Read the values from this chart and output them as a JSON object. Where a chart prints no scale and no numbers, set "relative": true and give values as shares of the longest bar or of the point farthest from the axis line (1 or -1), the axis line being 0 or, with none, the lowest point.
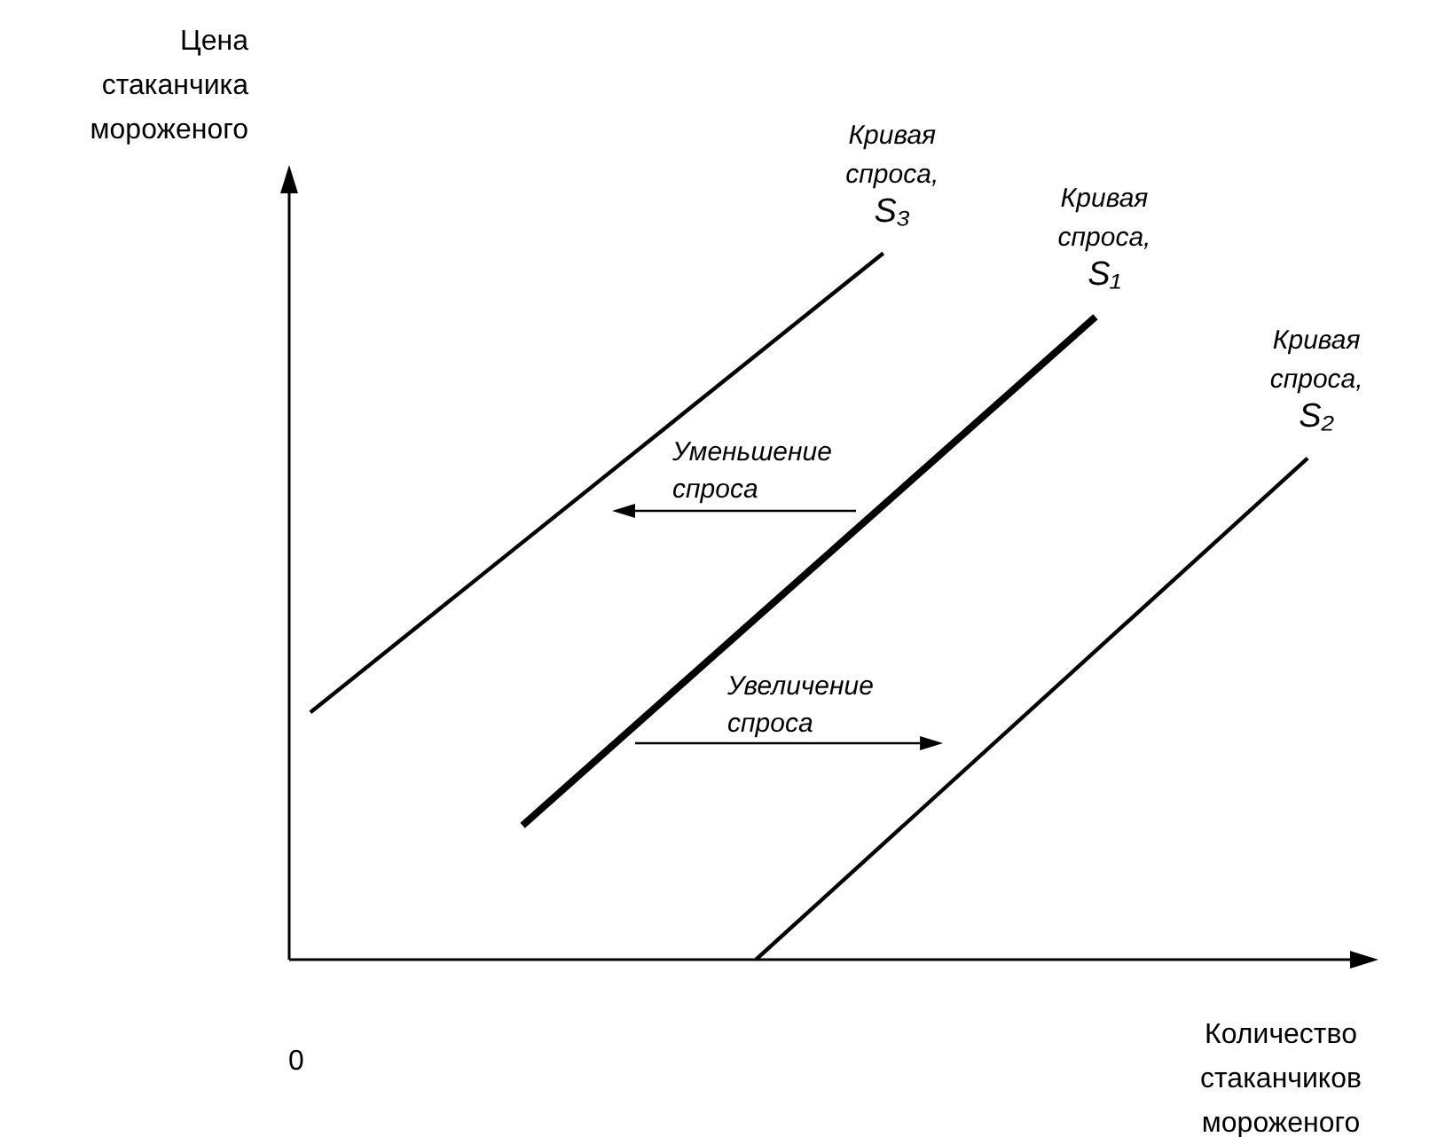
{
  "chart_data": {
    "type": "line",
    "relative": true,
    "legend": false,
    "marker": "none",
    "line_style": "solid",
    "xlabel": "Количество\nстаканчиков\nмороженого",
    "ylabel": "Цена\nстаканчика\nмороженого",
    "categories": [
      null,
      null,
      null,
      null,
      null,
      null,
      null,
      null,
      null,
      null,
      null,
      null,
      null,
      null,
      null,
      null,
      null,
      null,
      null,
      null,
      null,
      null,
      null,
      null,
      null,
      null,
      null,
      null,
      null,
      null,
      null,
      null,
      null,
      null,
      null,
      null,
      null,
      null,
      null,
      null,
      null,
      null,
      null,
      null,
      null,
      null,
      null,
      null,
      null,
      null,
      null
    ],
    "series": [
      {
        "name": "Кривая\nспроса,\nS₁",
        "color": "#000000",
        "values": [
          null,
          null,
          null,
          null,
          null,
          null,
          null,
          null,
          null,
          null,
          null,
          0.19,
          null,
          null,
          null,
          null,
          null,
          null,
          null,
          null,
          null,
          null,
          null,
          null,
          null,
          null,
          null,
          null,
          null,
          null,
          null,
          null,
          null,
          null,
          null,
          null,
          null,
          null,
          0.91,
          null,
          null,
          null,
          null,
          null,
          null,
          null,
          null,
          null,
          null,
          null,
          null
        ]
      },
      {
        "name": "Кривая\nспроса,\nS₂",
        "color": "#000000",
        "values": [
          null,
          null,
          null,
          null,
          null,
          null,
          null,
          null,
          null,
          null,
          null,
          null,
          null,
          null,
          null,
          null,
          null,
          null,
          null,
          null,
          null,
          null,
          0.0,
          null,
          null,
          null,
          null,
          null,
          null,
          null,
          null,
          null,
          null,
          null,
          null,
          null,
          null,
          null,
          null,
          null,
          null,
          null,
          null,
          null,
          null,
          null,
          null,
          null,
          0.71,
          null,
          null
        ]
      },
      {
        "name": "Кривая\nспроса,\nS₃",
        "color": "#000000",
        "values": [
          null,
          0.35,
          null,
          null,
          null,
          null,
          null,
          null,
          null,
          null,
          null,
          null,
          null,
          null,
          null,
          null,
          null,
          null,
          null,
          null,
          null,
          null,
          null,
          null,
          null,
          null,
          null,
          null,
          1.0,
          null,
          null,
          null,
          null,
          null,
          null,
          null,
          null,
          null,
          null,
          null,
          null,
          null,
          null,
          null,
          null,
          null,
          null,
          null,
          null,
          null,
          null
        ]
      }
    ],
    "annotations": [
      "Уменьшение\nспроса",
      "Увеличение\nспроса",
      "0"
    ]
  }
}
